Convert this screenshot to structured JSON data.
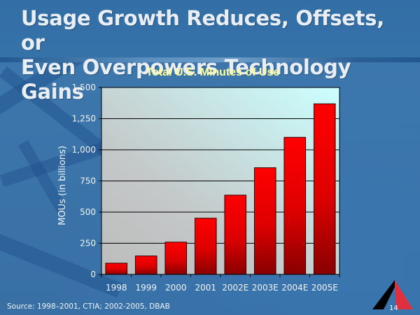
{
  "slide": {
    "title_line1": "Usage Growth Reduces, Offsets, or",
    "title_line2": "Even Overpowers Technology Gains",
    "source": "Source:  1998–2001, CTIA; 2002-2005, DBAB",
    "page_number": "14",
    "logo_icon": "triangle-a-logo-icon"
  },
  "colors": {
    "background": "#3a73a8",
    "title_text": "#e9eef4",
    "chart_title": "#ffff99",
    "bar_top": "#ff0000",
    "bar_bottom": "#8b0000",
    "plot_left": "#c0c0c0",
    "plot_right": "#ccffff",
    "logo_left": "#000000",
    "logo_right": "#e03040"
  },
  "chart_data": {
    "type": "bar",
    "title": "Total U.S. Minutes of Use",
    "xlabel": "",
    "ylabel": "MOUs (in billions)",
    "categories": [
      "1998",
      "1999",
      "2000",
      "2001",
      "2002E",
      "2003E",
      "2004E",
      "2005E"
    ],
    "values": [
      90,
      148,
      259,
      451,
      636,
      856,
      1100,
      1369
    ],
    "ylim": [
      0,
      1500
    ],
    "yticks": [
      0,
      250,
      500,
      750,
      1000,
      1250,
      1500
    ],
    "ytick_labels": [
      "0",
      "250",
      "500",
      "750",
      "1,000",
      "1,250",
      "1,500"
    ],
    "grid": true,
    "legend": "none"
  }
}
